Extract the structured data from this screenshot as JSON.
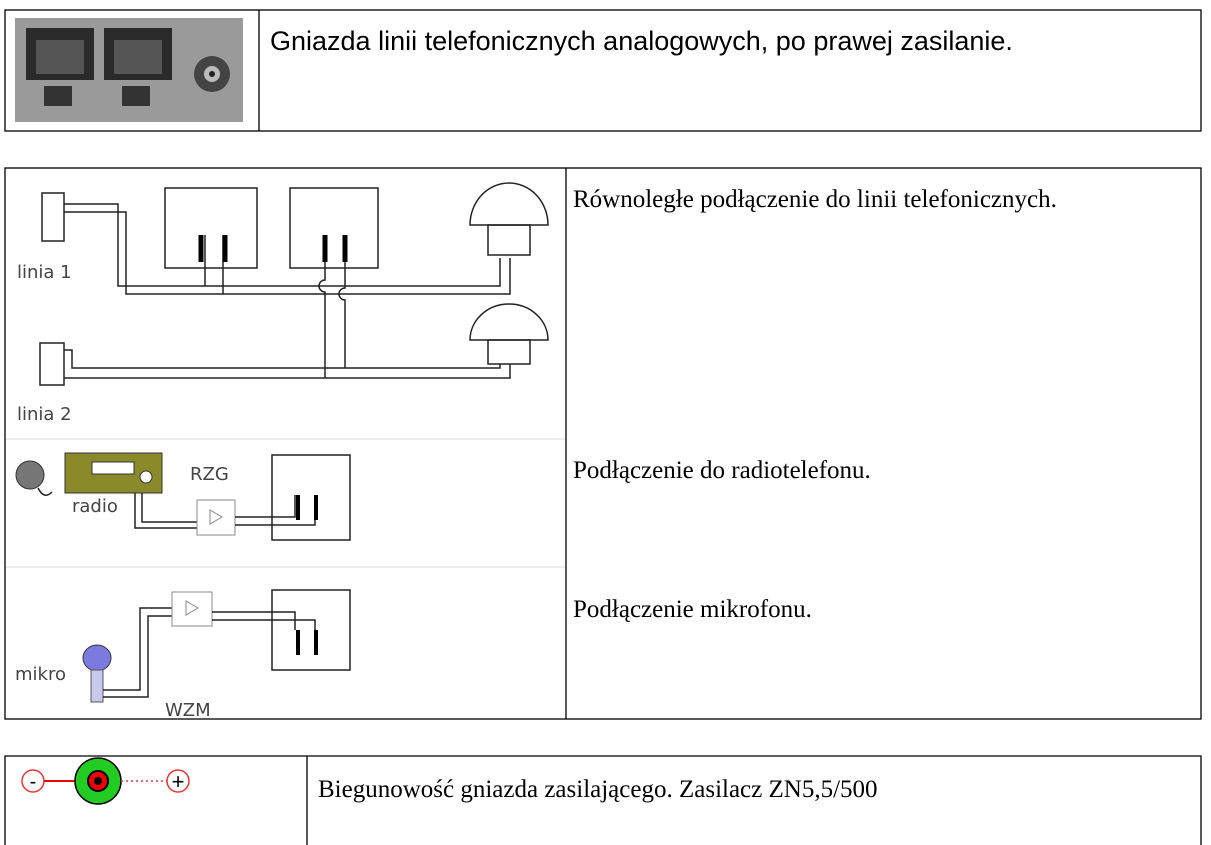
{
  "sockets": {
    "caption": "Gniazda linii telefonicznych analogowych, po prawej zasilanie."
  },
  "connections": {
    "rows": [
      {
        "caption": "Równoległe podłączenie do linii telefonicznych.",
        "labels": [
          "linia 1",
          "linia 2"
        ]
      },
      {
        "caption": "Podłączenie do radiotelefonu.",
        "labels": [
          "radio",
          "RZG"
        ]
      },
      {
        "caption": "Podłączenie mikrofonu.",
        "labels": [
          "mikro",
          "WZM"
        ]
      }
    ]
  },
  "polarity": {
    "caption": "Biegunowość gniazda zasilającego. Zasilacz ZN5,5/500",
    "minus": "-",
    "plus": "+"
  }
}
